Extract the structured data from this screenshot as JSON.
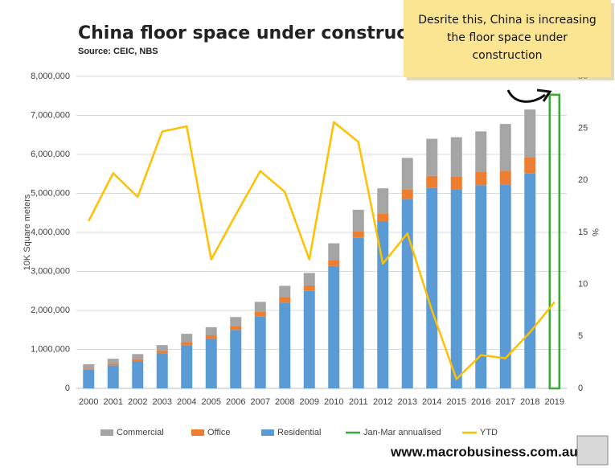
{
  "chart_data": {
    "type": "bar",
    "title": "China floor space under construction",
    "subtitle": "Source: CEIC, NBS",
    "ylabel": "10K Square meters",
    "y2label": "%",
    "annotation": [
      "Desrite this, China is increasing",
      "the floor space under",
      "construction"
    ],
    "footer": "www.macrobusiness.com.au",
    "categories": [
      "2000",
      "2001",
      "2002",
      "2003",
      "2004",
      "2005",
      "2006",
      "2007",
      "2008",
      "2009",
      "2010",
      "2011",
      "2012",
      "2013",
      "2014",
      "2015",
      "2016",
      "2017",
      "2018",
      "2019"
    ],
    "ylim": [
      0,
      8000000
    ],
    "yticks": [
      0,
      {
        "value": 1000000,
        "label": "1,000,000"
      },
      {
        "value": 2000000,
        "label": "2,000,000"
      },
      {
        "value": 3000000,
        "label": "3,000,000"
      },
      {
        "value": 4000000,
        "label": "4,000,000"
      },
      {
        "value": 5000000,
        "label": "5,000,000"
      },
      {
        "value": 6000000,
        "label": "6,000,000"
      },
      {
        "value": 7000000,
        "label": "7,000,000"
      },
      {
        "value": 8000000,
        "label": "8,000,000"
      }
    ],
    "y2lim": [
      0,
      30
    ],
    "y2ticks": [
      0,
      5,
      10,
      15,
      20,
      25,
      30
    ],
    "grid": true,
    "legend": "bottom",
    "series": [
      {
        "name": "Commercial",
        "type": "bar",
        "stacked": true,
        "color": "#a5a5a5",
        "values": [
          110000,
          130000,
          130000,
          150000,
          210000,
          210000,
          230000,
          260000,
          300000,
          320000,
          430000,
          560000,
          640000,
          810000,
          950000,
          1000000,
          1030000,
          1200000,
          1220000,
          null
        ]
      },
      {
        "name": "Office",
        "type": "bar",
        "stacked": true,
        "color": "#ed7d31",
        "values": [
          30000,
          40000,
          50000,
          60000,
          80000,
          90000,
          100000,
          110000,
          130000,
          140000,
          150000,
          160000,
          200000,
          240000,
          300000,
          330000,
          350000,
          350000,
          420000,
          null
        ]
      },
      {
        "name": "Residential",
        "type": "bar",
        "stacked": true,
        "color": "#5b9bd5",
        "values": [
          480000,
          590000,
          700000,
          900000,
          1110000,
          1270000,
          1500000,
          1850000,
          2200000,
          2500000,
          3140000,
          3860000,
          4290000,
          4860000,
          5150000,
          5110000,
          5210000,
          5230000,
          5510000,
          null
        ]
      },
      {
        "name": "Jan-Mar annualised",
        "type": "outline",
        "color": "#3aa935",
        "values": [
          null,
          null,
          null,
          null,
          null,
          null,
          null,
          null,
          null,
          null,
          null,
          null,
          null,
          null,
          null,
          null,
          null,
          null,
          null,
          7530000
        ]
      },
      {
        "name": "YTD",
        "type": "line",
        "axis": "y2",
        "color": "#ffc000",
        "values": [
          16.1,
          20.7,
          18.4,
          24.7,
          25.2,
          12.4,
          16.7,
          20.9,
          18.9,
          12.4,
          25.6,
          23.7,
          12.0,
          14.9,
          7.5,
          0.9,
          3.2,
          2.9,
          5.4,
          8.3
        ]
      }
    ]
  }
}
